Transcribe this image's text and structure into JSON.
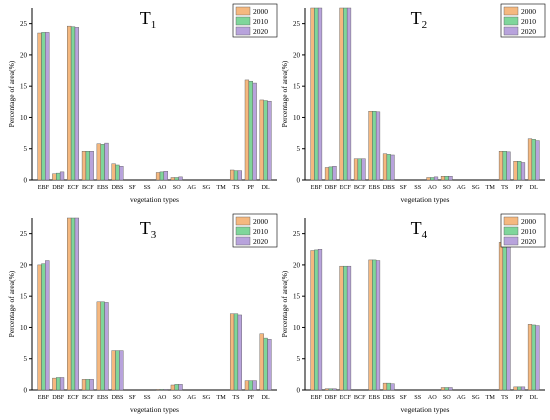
{
  "chart_data": [
    {
      "type": "bar",
      "title_main": "T",
      "title_sub": "1",
      "xlabel": "vegetation types",
      "ylabel": "Percentage of area(%)",
      "ylim": [
        0,
        27.5
      ],
      "yticks": [
        0,
        5,
        10,
        15,
        20,
        25
      ],
      "legend_position": "top-right",
      "categories": [
        "EBF",
        "DBF",
        "ECF",
        "BCF",
        "EBS",
        "DBS",
        "SF",
        "SS",
        "AO",
        "SO",
        "AG",
        "SG",
        "TM",
        "TS",
        "PF",
        "DL"
      ],
      "series": [
        {
          "name": "2000",
          "values": [
            23.5,
            1.0,
            24.6,
            4.6,
            5.8,
            2.6,
            0,
            0,
            1.2,
            0.4,
            0,
            0,
            0,
            1.6,
            16.0,
            12.8
          ]
        },
        {
          "name": "2010",
          "values": [
            23.6,
            1.1,
            24.5,
            4.6,
            5.7,
            2.4,
            0,
            0,
            1.3,
            0.4,
            0,
            0,
            0,
            1.5,
            15.8,
            12.7
          ]
        },
        {
          "name": "2020",
          "values": [
            23.6,
            1.3,
            24.4,
            4.6,
            5.9,
            2.2,
            0,
            0,
            1.4,
            0.5,
            0,
            0,
            0,
            1.5,
            15.5,
            12.6
          ]
        }
      ]
    },
    {
      "type": "bar",
      "title_main": "T",
      "title_sub": "2",
      "xlabel": "vegetation types",
      "ylabel": "Percentage of area(%)",
      "ylim": [
        0,
        27.5
      ],
      "yticks": [
        0,
        5,
        10,
        15,
        20,
        25
      ],
      "legend_position": "top-right",
      "categories": [
        "EBF",
        "DBF",
        "ECF",
        "BCF",
        "EBS",
        "DBS",
        "SF",
        "SS",
        "AO",
        "SO",
        "AG",
        "SG",
        "TM",
        "TS",
        "PF",
        "DL"
      ],
      "series": [
        {
          "name": "2000",
          "values": [
            27.5,
            2.0,
            27.5,
            3.4,
            11.0,
            4.2,
            0,
            0,
            0.4,
            0.6,
            0,
            0,
            0,
            4.6,
            3.0,
            6.6
          ]
        },
        {
          "name": "2010",
          "values": [
            27.5,
            2.1,
            27.5,
            3.4,
            11.0,
            4.1,
            0,
            0,
            0.4,
            0.6,
            0,
            0,
            0,
            4.6,
            3.0,
            6.5
          ]
        },
        {
          "name": "2020",
          "values": [
            27.5,
            2.2,
            27.5,
            3.4,
            10.9,
            4.0,
            0,
            0,
            0.5,
            0.6,
            0,
            0,
            0,
            4.5,
            2.8,
            6.3
          ]
        }
      ]
    },
    {
      "type": "bar",
      "title_main": "T",
      "title_sub": "3",
      "xlabel": "vegetation types",
      "ylabel": "Percentage of area(%)",
      "ylim": [
        0,
        27.5
      ],
      "yticks": [
        0,
        5,
        10,
        15,
        20,
        25
      ],
      "legend_position": "top-right",
      "categories": [
        "EBF",
        "DBF",
        "ECF",
        "BCF",
        "EBS",
        "DBS",
        "SF",
        "SS",
        "AO",
        "SO",
        "AG",
        "SG",
        "TM",
        "TS",
        "PF",
        "DL"
      ],
      "series": [
        {
          "name": "2000",
          "values": [
            20.0,
            1.9,
            27.5,
            1.7,
            14.1,
            6.3,
            0,
            0,
            0.1,
            0.8,
            0,
            0,
            0,
            12.2,
            1.5,
            9.0
          ]
        },
        {
          "name": "2010",
          "values": [
            20.2,
            2.0,
            27.5,
            1.7,
            14.1,
            6.3,
            0,
            0,
            0.1,
            0.9,
            0,
            0,
            0,
            12.2,
            1.5,
            8.3
          ]
        },
        {
          "name": "2020",
          "values": [
            20.7,
            2.0,
            27.5,
            1.7,
            14.0,
            6.3,
            0,
            0,
            0.1,
            0.9,
            0,
            0,
            0,
            12.0,
            1.5,
            8.1
          ]
        }
      ]
    },
    {
      "type": "bar",
      "title_main": "T",
      "title_sub": "4",
      "xlabel": "vegetation types",
      "ylabel": "Percentage of area(%)",
      "ylim": [
        0,
        27.5
      ],
      "yticks": [
        0,
        5,
        10,
        15,
        20,
        25
      ],
      "legend_position": "top-right",
      "categories": [
        "EBF",
        "DBF",
        "ECF",
        "BCF",
        "EBS",
        "DBS",
        "SF",
        "SS",
        "AO",
        "SO",
        "AG",
        "SG",
        "TM",
        "TS",
        "PF",
        "DL"
      ],
      "series": [
        {
          "name": "2000",
          "values": [
            22.3,
            0.2,
            19.8,
            0,
            20.8,
            1.1,
            0,
            0,
            0,
            0.4,
            0,
            0,
            0,
            23.6,
            0.5,
            10.5
          ]
        },
        {
          "name": "2010",
          "values": [
            22.4,
            0.2,
            19.8,
            0,
            20.8,
            1.1,
            0,
            0,
            0,
            0.4,
            0,
            0,
            0,
            23.7,
            0.5,
            10.4
          ]
        },
        {
          "name": "2020",
          "values": [
            22.5,
            0.2,
            19.8,
            0,
            20.7,
            1.0,
            0,
            0,
            0,
            0.4,
            0,
            0,
            0,
            23.8,
            0.5,
            10.3
          ]
        }
      ]
    }
  ],
  "colors": {
    "series": [
      "#f5b87f",
      "#7fd69a",
      "#b8a3dc"
    ],
    "axis": "#000000"
  }
}
